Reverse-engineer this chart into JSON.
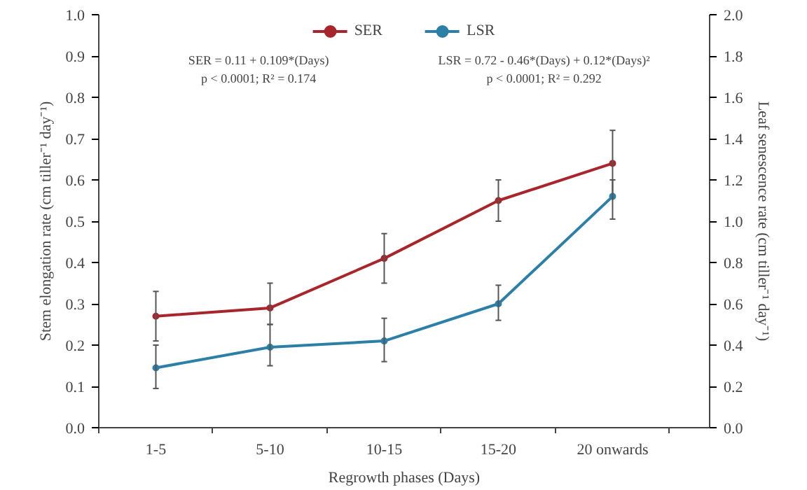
{
  "chart_data": {
    "type": "line",
    "categories": [
      "1-5",
      "5-10",
      "10-15",
      "15-20",
      "20 onwards"
    ],
    "xlabel": "Regrowth phases (Days)",
    "ylabel": "Stem elongation rate (cm tiller⁻¹ day⁻¹)",
    "y2label": "Leaf senescence rate (cm tiller⁻¹ day⁻¹)",
    "ylim": [
      0,
      1
    ],
    "yticks": [
      {
        "value": 0,
        "label": "0.0"
      },
      {
        "value": 0.1,
        "label": "0.1"
      },
      {
        "value": 0.2,
        "label": "0.2"
      },
      {
        "value": 0.3,
        "label": "0.3"
      },
      {
        "value": 0.4,
        "label": "0.4"
      },
      {
        "value": 0.5,
        "label": "0.5"
      },
      {
        "value": 0.6,
        "label": "0.6"
      },
      {
        "value": 0.7,
        "label": "0.7"
      },
      {
        "value": 0.8,
        "label": "0.8"
      },
      {
        "value": 0.9,
        "label": "0.9"
      },
      {
        "value": 1,
        "label": "1.0"
      }
    ],
    "y2lim": [
      0,
      2
    ],
    "y2ticks": [
      {
        "value": 0,
        "label": "0.0"
      },
      {
        "value": 0.2,
        "label": "0.2"
      },
      {
        "value": 0.4,
        "label": "0.4"
      },
      {
        "value": 0.6,
        "label": "0.6"
      },
      {
        "value": 0.8,
        "label": "0.8"
      },
      {
        "value": 1,
        "label": "1.0"
      },
      {
        "value": 1.2,
        "label": "1.2"
      },
      {
        "value": 1.4,
        "label": "1.4"
      },
      {
        "value": 1.6,
        "label": "1.6"
      },
      {
        "value": 1.8,
        "label": "1.8"
      },
      {
        "value": 2,
        "label": "2.0"
      }
    ],
    "series": [
      {
        "name": "SER",
        "color": "#a8262b",
        "values": [
          0.27,
          0.29,
          0.41,
          0.55,
          0.64
        ],
        "errors": [
          [
            0.21,
            0.33
          ],
          [
            0.25,
            0.35
          ],
          [
            0.35,
            0.47
          ],
          [
            0.5,
            0.6
          ],
          [
            0.56,
            0.72
          ]
        ]
      },
      {
        "name": "LSR",
        "color": "#2c7fa6",
        "axis": "y2",
        "values": [
          0.29,
          0.39,
          0.42,
          0.6,
          1.12
        ],
        "errors": [
          [
            0.19,
            0.4
          ],
          [
            0.3,
            0.5
          ],
          [
            0.32,
            0.53
          ],
          [
            0.52,
            0.69
          ],
          [
            1.01,
            1.2
          ]
        ]
      }
    ],
    "annotations": [
      "SER = 0.11 + 0.109*(Days)",
      "p < 0.0001; R² = 0.174",
      "LSR = 0.72 - 0.46*(Days) + 0.12*(Days)²",
      "p < 0.0001; R² = 0.292"
    ],
    "marker": "circle",
    "line_style": "solid",
    "grid": false,
    "legend": "top"
  }
}
